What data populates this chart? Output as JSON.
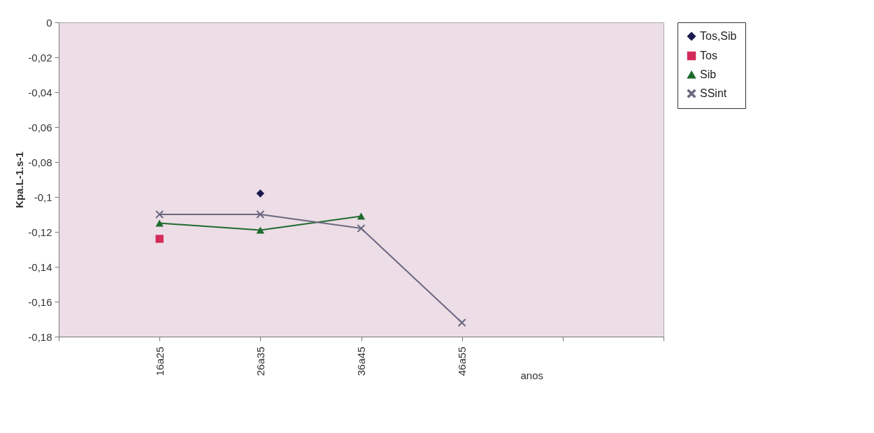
{
  "chart_data": {
    "type": "line",
    "xlabel": "anos",
    "ylabel": "Kpa.L-1.s-1",
    "categories": [
      null,
      "16a25",
      "26a35",
      "36a45",
      "46a55",
      null,
      null
    ],
    "ylim": [
      -0.18,
      0
    ],
    "yticks": [
      0,
      {
        "value": -0.02,
        "label": "-0,02"
      },
      {
        "value": -0.04,
        "label": "-0,04"
      },
      {
        "value": -0.06,
        "label": "-0,06"
      },
      {
        "value": -0.08,
        "label": "-0,08"
      },
      {
        "value": -0.1,
        "label": "-0,1"
      },
      {
        "value": -0.12,
        "label": "-0,12"
      },
      {
        "value": -0.14,
        "label": "-0,14"
      },
      {
        "value": -0.16,
        "label": "-0,16"
      },
      {
        "value": -0.18,
        "label": "-0,18"
      }
    ],
    "grid": false,
    "legend": "right",
    "series": [
      {
        "name": "Tos,Sib",
        "color": "#1a1a4e",
        "marker": "diamond",
        "values": [
          null,
          null,
          -0.098,
          null,
          null,
          null,
          null
        ]
      },
      {
        "name": "Tos",
        "color": "#d42a5a",
        "marker": "square",
        "values": [
          null,
          -0.124,
          null,
          null,
          null,
          null,
          null
        ]
      },
      {
        "name": "Sib",
        "color": "#1e6b2e",
        "marker": "triangle",
        "values": [
          null,
          -0.115,
          -0.119,
          -0.111,
          null,
          null,
          null
        ]
      },
      {
        "name": "SSint",
        "color": "#6b6880",
        "marker": "cross",
        "values": [
          null,
          -0.11,
          -0.11,
          -0.118,
          -0.172,
          null,
          null
        ]
      }
    ]
  }
}
